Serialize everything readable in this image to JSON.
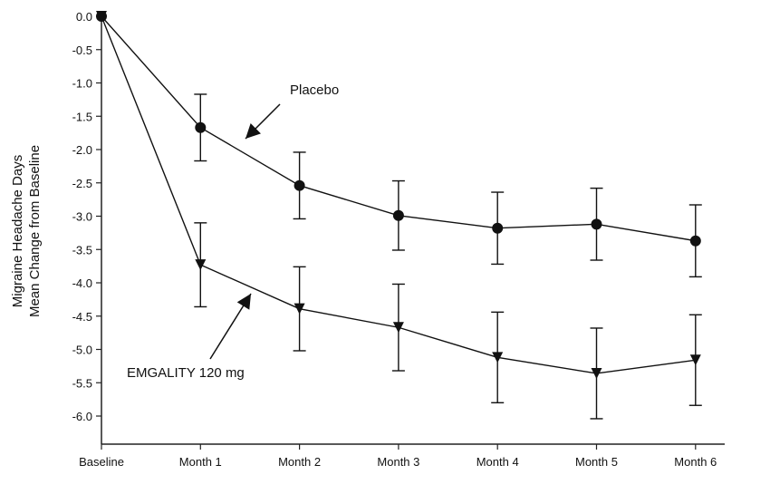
{
  "chart_data": {
    "type": "line",
    "title": "",
    "ylabel_lines": [
      "Migraine Headache Days",
      "Mean Change from Baseline"
    ],
    "xlabel": "",
    "categories": [
      "Baseline",
      "Month 1",
      "Month 2",
      "Month 3",
      "Month 4",
      "Month 5",
      "Month 6"
    ],
    "ylim": [
      -6.43,
      0
    ],
    "yticks": [
      0.0,
      -0.5,
      -1.0,
      -1.5,
      -2.0,
      -2.5,
      -3.0,
      -3.5,
      -4.0,
      -4.5,
      -5.0,
      -5.5,
      -6.0
    ],
    "ytick_labels": [
      "0.0",
      "-0.5",
      "-1.0",
      "-1.5",
      "-2.0",
      "-2.5",
      "-3.0",
      "-3.5",
      "-4.0",
      "-4.5",
      "-5.0",
      "-5.5",
      "-6.0"
    ],
    "grid": false,
    "series": [
      {
        "name": "Placebo",
        "marker": "circle",
        "color": "#111111",
        "values": [
          0,
          -1.67,
          -2.54,
          -2.99,
          -3.18,
          -3.12,
          -3.37
        ],
        "errors": [
          0,
          0.5,
          0.5,
          0.52,
          0.54,
          0.54,
          0.54
        ]
      },
      {
        "name": "EMGALITY 120 mg",
        "marker": "triangle-down",
        "color": "#111111",
        "values": [
          0,
          -3.73,
          -4.39,
          -4.67,
          -5.12,
          -5.36,
          -5.16
        ],
        "errors": [
          0,
          0.63,
          0.63,
          0.65,
          0.68,
          0.68,
          0.68
        ]
      }
    ],
    "annotations": [
      "Placebo",
      "EMGALITY 120 mg"
    ]
  }
}
